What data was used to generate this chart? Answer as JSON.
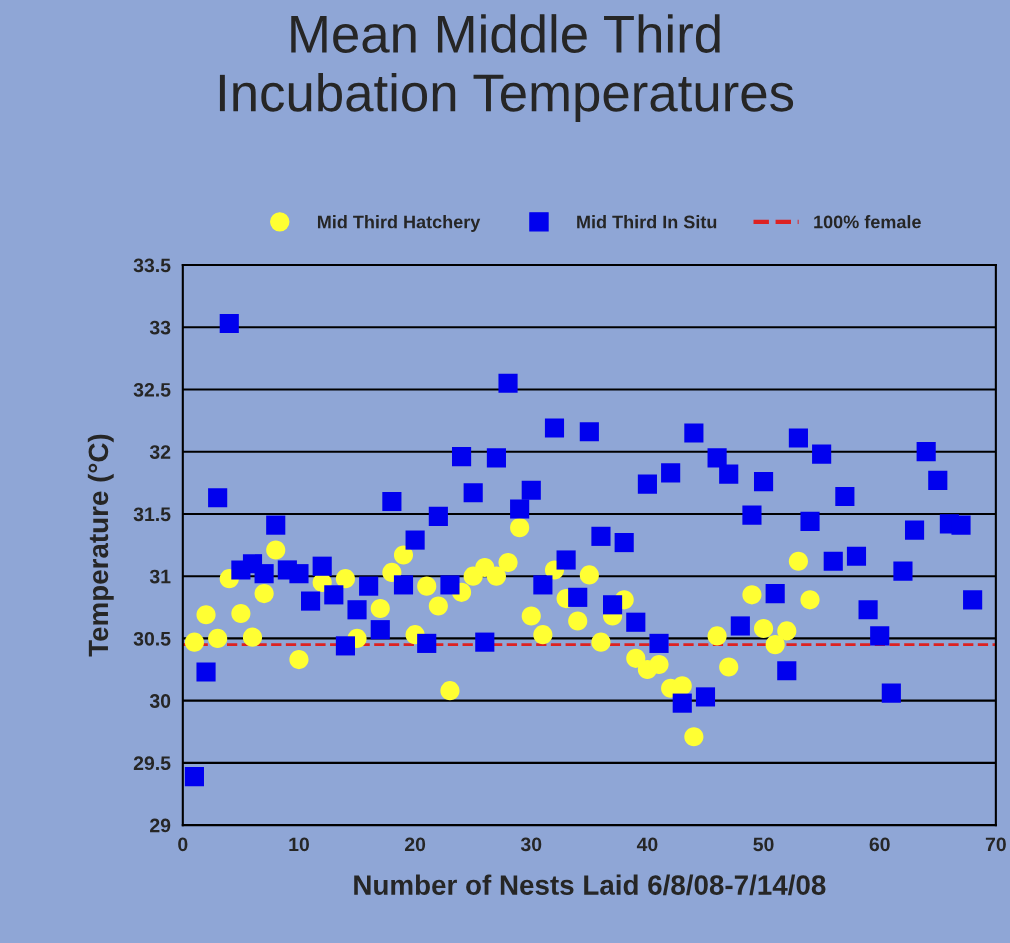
{
  "chart_data": {
    "type": "scatter",
    "title": "Mean Middle Third\nIncubation Temperatures",
    "xlabel": "Number of Nests Laid 6/8/08-7/14/08",
    "ylabel": "Temperature (°C)",
    "series": [
      {
        "name": "Mid Third Hatchery",
        "color": "#ffff33",
        "marker": "circle",
        "x": [
          1,
          2,
          3,
          4,
          5,
          6,
          7,
          8,
          9,
          10,
          11,
          12,
          13,
          14,
          15,
          16,
          17,
          18,
          19,
          20,
          21,
          22,
          23,
          24,
          25,
          26,
          27,
          28,
          29,
          30,
          31,
          32,
          33,
          34,
          35,
          36,
          37,
          38,
          39,
          40,
          41,
          42,
          43,
          44,
          45,
          46,
          47,
          48,
          49,
          50,
          51,
          52,
          53,
          54
        ],
        "values": [
          30.47,
          30.69,
          30.5,
          30.98,
          30.7,
          30.51,
          30.86,
          31.21,
          null,
          30.33,
          null,
          30.95,
          null,
          30.98,
          30.5,
          null,
          30.74,
          31.03,
          31.17,
          30.53,
          30.92,
          30.76,
          30.08,
          30.87,
          31.0,
          31.07,
          31.0,
          31.11,
          31.39,
          30.68,
          30.53,
          31.05,
          30.82,
          30.64,
          31.01,
          30.47,
          30.68,
          30.81,
          30.34,
          30.25,
          30.29,
          30.1,
          30.12,
          29.71,
          null,
          30.52,
          30.27,
          null,
          30.85,
          30.58,
          30.45,
          30.56,
          31.12,
          30.81
        ]
      },
      {
        "name": "Mid Third In Situ",
        "color": "#0000ee",
        "marker": "square",
        "x": [
          1,
          2,
          3,
          4,
          5,
          6,
          7,
          8,
          9,
          10,
          11,
          12,
          13,
          14,
          15,
          16,
          17,
          18,
          19,
          20,
          21,
          22,
          23,
          24,
          25,
          26,
          27,
          28,
          29,
          30,
          31,
          32,
          33,
          34,
          35,
          36,
          37,
          38,
          39,
          40,
          41,
          42,
          43,
          44,
          45,
          46,
          47,
          48,
          49,
          50,
          51,
          52,
          53,
          54,
          55,
          56,
          57,
          58,
          59,
          60,
          61,
          62,
          63,
          64,
          65,
          66,
          67,
          68
        ],
        "values": [
          29.39,
          30.23,
          31.63,
          33.03,
          31.05,
          31.1,
          31.02,
          31.41,
          31.05,
          31.02,
          30.8,
          31.08,
          30.85,
          30.44,
          30.73,
          30.92,
          30.57,
          31.6,
          30.93,
          31.29,
          30.46,
          31.48,
          30.93,
          31.96,
          31.67,
          30.47,
          31.95,
          32.55,
          31.54,
          31.69,
          30.93,
          32.19,
          31.13,
          30.83,
          32.16,
          31.32,
          30.77,
          31.27,
          30.63,
          31.74,
          30.46,
          31.83,
          29.98,
          32.15,
          30.03,
          31.95,
          31.82,
          30.6,
          31.49,
          31.76,
          30.86,
          30.24,
          32.11,
          31.44,
          31.98,
          31.12,
          31.64,
          31.16,
          30.73,
          30.52,
          30.06,
          31.04,
          31.37,
          32.0,
          31.77,
          31.42,
          31.41,
          30.81
        ]
      }
    ],
    "ref_lines": [
      {
        "axis": "y",
        "value": 30.45,
        "label": "100% female",
        "color": "#dd2222",
        "line_style": "dashed"
      }
    ],
    "xlim": [
      0,
      70
    ],
    "xticks": [
      0,
      10,
      20,
      30,
      40,
      50,
      60,
      70
    ],
    "ylim": [
      29,
      33.5
    ],
    "yticks": [
      29,
      29.5,
      30,
      30.5,
      31,
      31.5,
      32,
      32.5,
      33,
      33.5
    ],
    "grid": "y",
    "legend": "top"
  }
}
